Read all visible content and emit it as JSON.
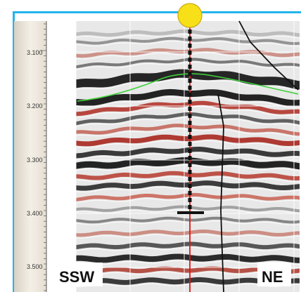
{
  "axis": {
    "ticks": [
      "3.100",
      "3.200",
      "3.300",
      "3.400",
      "3.500"
    ]
  },
  "labels": {
    "left": "SSW",
    "right": "NE"
  },
  "colors": {
    "frame": "#22b4ec",
    "horizon": "#3fd23a",
    "well": "#e41414",
    "well_marker": "#f7e017"
  }
}
